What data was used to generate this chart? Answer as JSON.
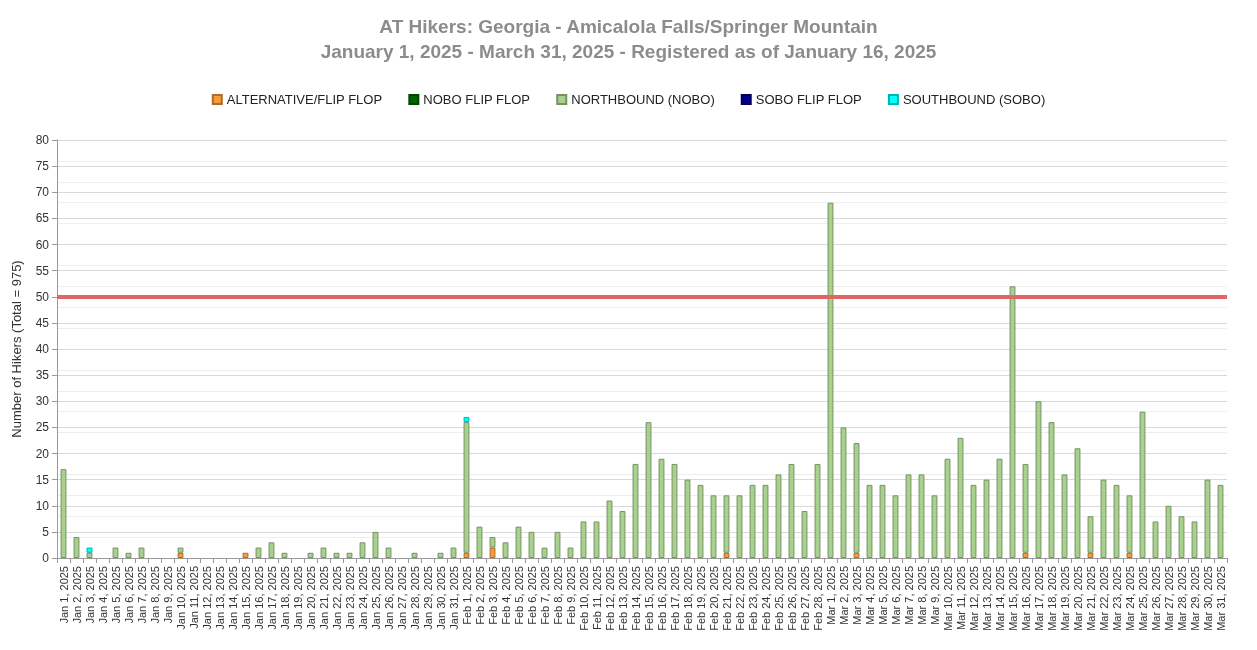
{
  "chart_data": {
    "type": "bar",
    "stacked": true,
    "title": "AT Hikers: Georgia - Amicalola Falls/Springer Mountain",
    "subtitle": "January 1, 2025 - March 31, 2025 - Registered as of January 16, 2025",
    "ylabel": "Number of Hikers (Total = 975)",
    "categories": [
      "Jan 1, 2025",
      "Jan 2, 2025",
      "Jan 3, 2025",
      "Jan 4, 2025",
      "Jan 5, 2025",
      "Jan 6, 2025",
      "Jan 7, 2025",
      "Jan 8, 2025",
      "Jan 9, 2025",
      "Jan 10, 2025",
      "Jan 11, 2025",
      "Jan 12, 2025",
      "Jan 13, 2025",
      "Jan 14, 2025",
      "Jan 15, 2025",
      "Jan 16, 2025",
      "Jan 17, 2025",
      "Jan 18, 2025",
      "Jan 19, 2025",
      "Jan 20, 2025",
      "Jan 21, 2025",
      "Jan 22, 2025",
      "Jan 23, 2025",
      "Jan 24, 2025",
      "Jan 25, 2025",
      "Jan 26, 2025",
      "Jan 27, 2025",
      "Jan 28, 2025",
      "Jan 29, 2025",
      "Jan 30, 2025",
      "Jan 31, 2025",
      "Feb 1, 2025",
      "Feb 2, 2025",
      "Feb 3, 2025",
      "Feb 4, 2025",
      "Feb 5, 2025",
      "Feb 6, 2025",
      "Feb 7, 2025",
      "Feb 8, 2025",
      "Feb 9, 2025",
      "Feb 10, 2025",
      "Feb 11, 2025",
      "Feb 12, 2025",
      "Feb 13, 2025",
      "Feb 14, 2025",
      "Feb 15, 2025",
      "Feb 16, 2025",
      "Feb 17, 2025",
      "Feb 18, 2025",
      "Feb 19, 2025",
      "Feb 20, 2025",
      "Feb 21, 2025",
      "Feb 22, 2025",
      "Feb 23, 2025",
      "Feb 24, 2025",
      "Feb 25, 2025",
      "Feb 26, 2025",
      "Feb 27, 2025",
      "Feb 28, 2025",
      "Mar 1, 2025",
      "Mar 2, 2025",
      "Mar 3, 2025",
      "Mar 4, 2025",
      "Mar 5, 2025",
      "Mar 6, 2025",
      "Mar 7, 2025",
      "Mar 8, 2025",
      "Mar 9, 2025",
      "Mar 10, 2025",
      "Mar 11, 2025",
      "Mar 12, 2025",
      "Mar 13, 2025",
      "Mar 14, 2025",
      "Mar 15, 2025",
      "Mar 16, 2025",
      "Mar 17, 2025",
      "Mar 18, 2025",
      "Mar 19, 2025",
      "Mar 20, 2025",
      "Mar 21, 2025",
      "Mar 22, 2025",
      "Mar 23, 2025",
      "Mar 24, 2025",
      "Mar 25, 2025",
      "Mar 26, 2025",
      "Mar 27, 2025",
      "Mar 28, 2025",
      "Mar 29, 2025",
      "Mar 30, 2025",
      "Mar 31, 2025"
    ],
    "series": [
      {
        "name": "ALTERNATIVE/FLIP FLOP",
        "color": "#f79a3a",
        "values": [
          0,
          0,
          0,
          0,
          0,
          0,
          0,
          0,
          0,
          1,
          0,
          0,
          0,
          0,
          1,
          0,
          0,
          0,
          0,
          0,
          0,
          0,
          0,
          0,
          0,
          0,
          0,
          0,
          0,
          0,
          0,
          1,
          0,
          2,
          0,
          0,
          0,
          0,
          0,
          0,
          0,
          0,
          0,
          0,
          0,
          0,
          0,
          0,
          0,
          0,
          0,
          1,
          0,
          0,
          0,
          0,
          0,
          0,
          0,
          0,
          0,
          1,
          0,
          0,
          0,
          0,
          0,
          0,
          0,
          0,
          0,
          0,
          0,
          0,
          1,
          0,
          0,
          0,
          0,
          1,
          0,
          0,
          1,
          0,
          0,
          0,
          0,
          0,
          0,
          0
        ]
      },
      {
        "name": "NOBO FLIP FLOP",
        "color": "#006400",
        "values": [
          0,
          0,
          0,
          0,
          0,
          0,
          0,
          0,
          0,
          0,
          0,
          0,
          0,
          0,
          0,
          0,
          0,
          0,
          0,
          0,
          0,
          0,
          0,
          0,
          0,
          0,
          0,
          0,
          0,
          0,
          0,
          0,
          0,
          0,
          0,
          0,
          0,
          0,
          0,
          0,
          0,
          0,
          0,
          0,
          0,
          0,
          0,
          0,
          0,
          0,
          0,
          0,
          0,
          0,
          0,
          0,
          0,
          0,
          0,
          0,
          0,
          0,
          0,
          0,
          0,
          0,
          0,
          0,
          0,
          0,
          0,
          0,
          0,
          0,
          0,
          0,
          0,
          0,
          0,
          0,
          0,
          0,
          0,
          0,
          0,
          0,
          0,
          0,
          0,
          0
        ]
      },
      {
        "name": "NORTHBOUND (NOBO)",
        "color": "#a9d18e",
        "values": [
          17,
          4,
          1,
          0,
          2,
          1,
          2,
          0,
          0,
          1,
          0,
          0,
          0,
          0,
          0,
          2,
          3,
          1,
          0,
          1,
          2,
          1,
          1,
          3,
          5,
          2,
          0,
          1,
          0,
          1,
          2,
          25,
          6,
          2,
          3,
          6,
          5,
          2,
          5,
          2,
          7,
          7,
          11,
          9,
          18,
          26,
          19,
          18,
          15,
          14,
          12,
          11,
          12,
          14,
          14,
          16,
          18,
          9,
          18,
          68,
          25,
          21,
          14,
          14,
          12,
          16,
          16,
          12,
          19,
          23,
          14,
          15,
          19,
          52,
          17,
          30,
          26,
          16,
          21,
          7,
          15,
          14,
          11,
          28,
          7,
          10,
          8,
          7,
          15,
          14
        ]
      },
      {
        "name": "SOBO FLIP FLOP",
        "color": "#00008b",
        "values": [
          0,
          0,
          0,
          0,
          0,
          0,
          0,
          0,
          0,
          0,
          0,
          0,
          0,
          0,
          0,
          0,
          0,
          0,
          0,
          0,
          0,
          0,
          0,
          0,
          0,
          0,
          0,
          0,
          0,
          0,
          0,
          0,
          0,
          0,
          0,
          0,
          0,
          0,
          0,
          0,
          0,
          0,
          0,
          0,
          0,
          0,
          0,
          0,
          0,
          0,
          0,
          0,
          0,
          0,
          0,
          0,
          0,
          0,
          0,
          0,
          0,
          0,
          0,
          0,
          0,
          0,
          0,
          0,
          0,
          0,
          0,
          0,
          0,
          0,
          0,
          0,
          0,
          0,
          0,
          0,
          0,
          0,
          0,
          0,
          0,
          0,
          0,
          0,
          0,
          0
        ]
      },
      {
        "name": "SOUTHBOUND (SOBO)",
        "color": "#00ffff",
        "values": [
          0,
          0,
          1,
          0,
          0,
          0,
          0,
          0,
          0,
          0,
          0,
          0,
          0,
          0,
          0,
          0,
          0,
          0,
          0,
          0,
          0,
          0,
          0,
          0,
          0,
          0,
          0,
          0,
          0,
          0,
          0,
          1,
          0,
          0,
          0,
          0,
          0,
          0,
          0,
          0,
          0,
          0,
          0,
          0,
          0,
          0,
          0,
          0,
          0,
          0,
          0,
          0,
          0,
          0,
          0,
          0,
          0,
          0,
          0,
          0,
          0,
          0,
          0,
          0,
          0,
          0,
          0,
          0,
          0,
          0,
          0,
          0,
          0,
          0,
          0,
          0,
          0,
          0,
          0,
          0,
          0,
          0,
          0,
          0,
          0,
          0,
          0,
          0,
          0,
          0
        ]
      }
    ],
    "ylim": [
      0,
      80
    ],
    "yticks": [
      0,
      5,
      10,
      15,
      20,
      25,
      30,
      35,
      40,
      45,
      50,
      55,
      60,
      65,
      70,
      75,
      80
    ],
    "grid": "y",
    "legend": "top",
    "marker": "square",
    "ref_lines": [
      {
        "axis": "y",
        "value": 50,
        "color": "#e06666"
      }
    ]
  }
}
